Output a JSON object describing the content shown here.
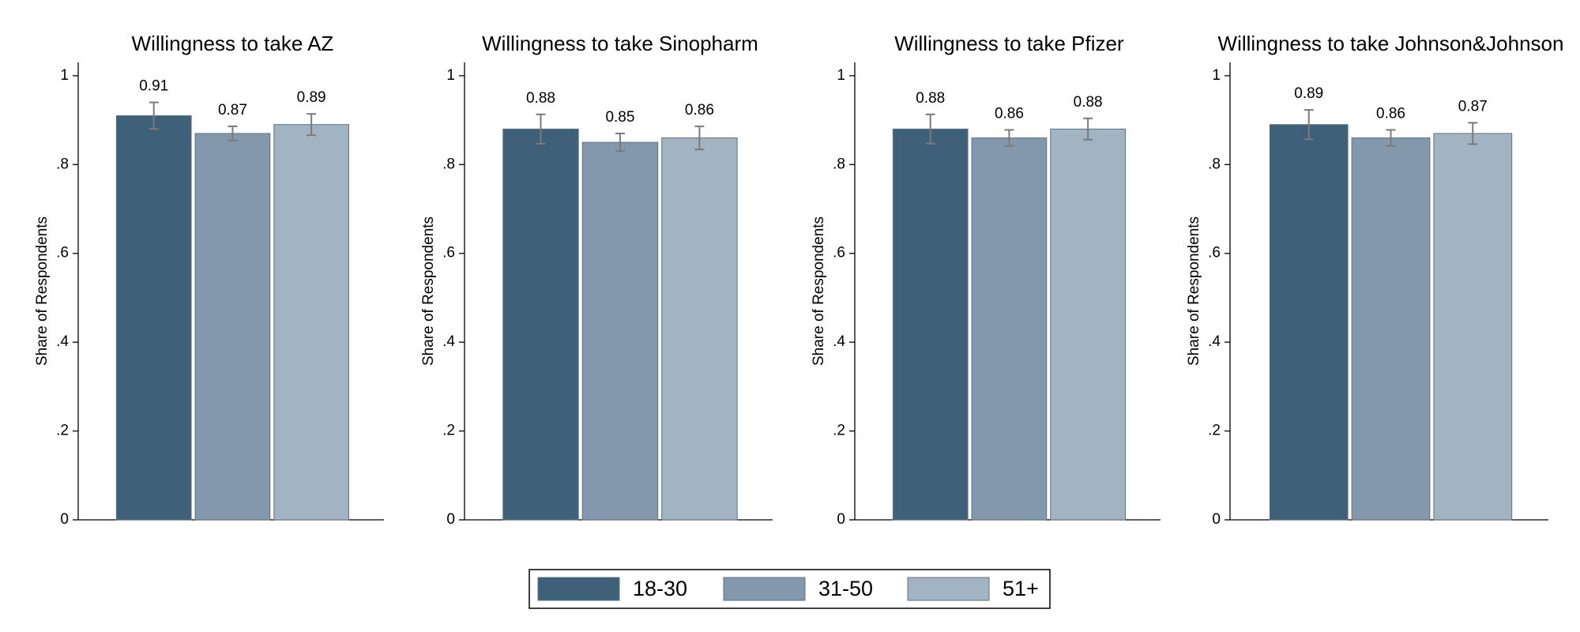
{
  "legend": {
    "position": "bottom",
    "series": [
      {
        "name": "18-30",
        "color": "#3e6079"
      },
      {
        "name": "31-50",
        "color": "#8398ac"
      },
      {
        "name": "51+",
        "color": "#a2b3c1"
      }
    ]
  },
  "chart_data": [
    {
      "type": "bar",
      "title": "Willingness to take AZ",
      "ylabel": "Share of Respondents",
      "values": [
        0.91,
        0.87,
        0.89
      ],
      "errors": [
        0.03,
        0.016,
        0.024
      ],
      "ylim": [
        0,
        1.03
      ],
      "yticks": [
        0,
        {
          "value": 0.2,
          "label": ".2"
        },
        {
          "value": 0.4,
          "label": ".4"
        },
        {
          "value": 0.6,
          "label": ".6"
        },
        {
          "value": 0.8,
          "label": ".8"
        },
        1
      ]
    },
    {
      "type": "bar",
      "title": "Willingness to take Sinopharm",
      "ylabel": "Share of Respondents",
      "values": [
        0.88,
        0.85,
        0.86
      ],
      "errors": [
        0.033,
        0.02,
        0.026
      ],
      "ylim": [
        0,
        1.03
      ],
      "yticks": [
        0,
        {
          "value": 0.2,
          "label": ".2"
        },
        {
          "value": 0.4,
          "label": ".4"
        },
        {
          "value": 0.6,
          "label": ".6"
        },
        {
          "value": 0.8,
          "label": ".8"
        },
        1
      ]
    },
    {
      "type": "bar",
      "title": "Willingness to take Pfizer",
      "ylabel": "Share of Respondents",
      "values": [
        0.88,
        0.86,
        0.88
      ],
      "errors": [
        0.033,
        0.018,
        0.024
      ],
      "ylim": [
        0,
        1.03
      ],
      "yticks": [
        0,
        {
          "value": 0.2,
          "label": ".2"
        },
        {
          "value": 0.4,
          "label": ".4"
        },
        {
          "value": 0.6,
          "label": ".6"
        },
        {
          "value": 0.8,
          "label": ".8"
        },
        1
      ]
    },
    {
      "type": "bar",
      "title": "Willingness to take Johnson&Johnson",
      "ylabel": "Share of Respondents",
      "values": [
        0.89,
        0.86,
        0.87
      ],
      "errors": [
        0.033,
        0.018,
        0.024
      ],
      "ylim": [
        0,
        1.03
      ],
      "yticks": [
        0,
        {
          "value": 0.2,
          "label": ".2"
        },
        {
          "value": 0.4,
          "label": ".4"
        },
        {
          "value": 0.6,
          "label": ".6"
        },
        {
          "value": 0.8,
          "label": ".8"
        },
        1
      ]
    }
  ]
}
